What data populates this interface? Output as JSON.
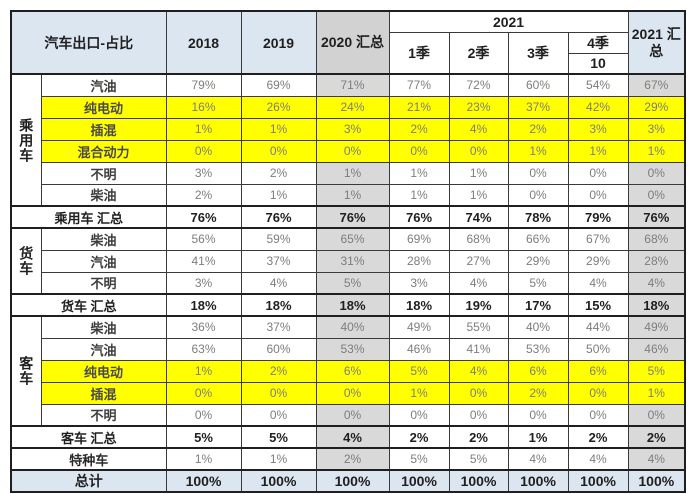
{
  "header": {
    "title": "汽车出口-占比",
    "y2018": "2018",
    "y2019": "2019",
    "y2020_total": "2020 汇总",
    "y2021_group": "2021",
    "q1": "1季",
    "q2": "2季",
    "q3": "3季",
    "q4": "4季",
    "q4_month": "10",
    "y2021_total": "2021 汇总"
  },
  "colors": {
    "header_blue": "#dce6f1",
    "header_gray": "#d2d2d2",
    "column_gray": "#d9d9d9",
    "highlight_yellow": "#ffff00",
    "value_text_gray": "#7d7d7d",
    "bold_text": "#1f1f1f"
  },
  "chart_data": {
    "type": "table",
    "title": "汽车出口-占比",
    "column_headers": [
      "2018",
      "2019",
      "2020 汇总",
      "2021 1季",
      "2021 2季",
      "2021 3季",
      "2021 4季 (10)",
      "2021 汇总"
    ],
    "groups": [
      {
        "name": "乘用车",
        "rows": [
          {
            "label": "汽油",
            "highlight": false,
            "values": [
              "79%",
              "69%",
              "71%",
              "77%",
              "72%",
              "60%",
              "54%",
              "67%"
            ]
          },
          {
            "label": "纯电动",
            "highlight": true,
            "values": [
              "16%",
              "26%",
              "24%",
              "21%",
              "23%",
              "37%",
              "42%",
              "29%"
            ]
          },
          {
            "label": "插混",
            "highlight": true,
            "values": [
              "1%",
              "1%",
              "3%",
              "2%",
              "4%",
              "2%",
              "3%",
              "3%"
            ]
          },
          {
            "label": "混合动力",
            "highlight": true,
            "values": [
              "0%",
              "0%",
              "0%",
              "0%",
              "0%",
              "1%",
              "1%",
              "1%"
            ]
          },
          {
            "label": "不明",
            "highlight": false,
            "values": [
              "3%",
              "2%",
              "1%",
              "1%",
              "1%",
              "0%",
              "0%",
              "0%"
            ]
          },
          {
            "label": "柴油",
            "highlight": false,
            "values": [
              "2%",
              "1%",
              "1%",
              "1%",
              "1%",
              "0%",
              "0%",
              "0%"
            ]
          }
        ],
        "total": {
          "label": "乘用车 汇总",
          "values": [
            "76%",
            "76%",
            "76%",
            "76%",
            "74%",
            "78%",
            "79%",
            "76%"
          ]
        }
      },
      {
        "name": "货车",
        "rows": [
          {
            "label": "柴油",
            "highlight": false,
            "values": [
              "56%",
              "59%",
              "65%",
              "69%",
              "68%",
              "66%",
              "67%",
              "68%"
            ]
          },
          {
            "label": "汽油",
            "highlight": false,
            "values": [
              "41%",
              "37%",
              "31%",
              "28%",
              "27%",
              "29%",
              "29%",
              "28%"
            ]
          },
          {
            "label": "不明",
            "highlight": false,
            "values": [
              "3%",
              "4%",
              "5%",
              "3%",
              "4%",
              "5%",
              "4%",
              "4%"
            ]
          }
        ],
        "total": {
          "label": "货车 汇总",
          "values": [
            "18%",
            "18%",
            "18%",
            "18%",
            "19%",
            "17%",
            "15%",
            "18%"
          ]
        }
      },
      {
        "name": "客车",
        "rows": [
          {
            "label": "柴油",
            "highlight": false,
            "values": [
              "36%",
              "37%",
              "40%",
              "49%",
              "55%",
              "40%",
              "44%",
              "49%"
            ]
          },
          {
            "label": "汽油",
            "highlight": false,
            "values": [
              "63%",
              "60%",
              "53%",
              "46%",
              "41%",
              "53%",
              "50%",
              "46%"
            ]
          },
          {
            "label": "纯电动",
            "highlight": true,
            "values": [
              "1%",
              "2%",
              "6%",
              "5%",
              "4%",
              "6%",
              "6%",
              "5%"
            ]
          },
          {
            "label": "插混",
            "highlight": true,
            "values": [
              "0%",
              "0%",
              "0%",
              "1%",
              "0%",
              "2%",
              "0%",
              "1%"
            ]
          },
          {
            "label": "不明",
            "highlight": false,
            "values": [
              "0%",
              "0%",
              "0%",
              "0%",
              "0%",
              "0%",
              "0%",
              "0%"
            ]
          }
        ],
        "total": {
          "label": "客车 汇总",
          "values": [
            "5%",
            "5%",
            "4%",
            "2%",
            "2%",
            "1%",
            "2%",
            "2%"
          ]
        }
      }
    ],
    "special_row": {
      "label": "特种车",
      "values": [
        "1%",
        "1%",
        "2%",
        "5%",
        "5%",
        "4%",
        "4%",
        "4%"
      ]
    },
    "grand_total": {
      "label": "总计",
      "values": [
        "100%",
        "100%",
        "100%",
        "100%",
        "100%",
        "100%",
        "100%",
        "100%"
      ]
    }
  }
}
